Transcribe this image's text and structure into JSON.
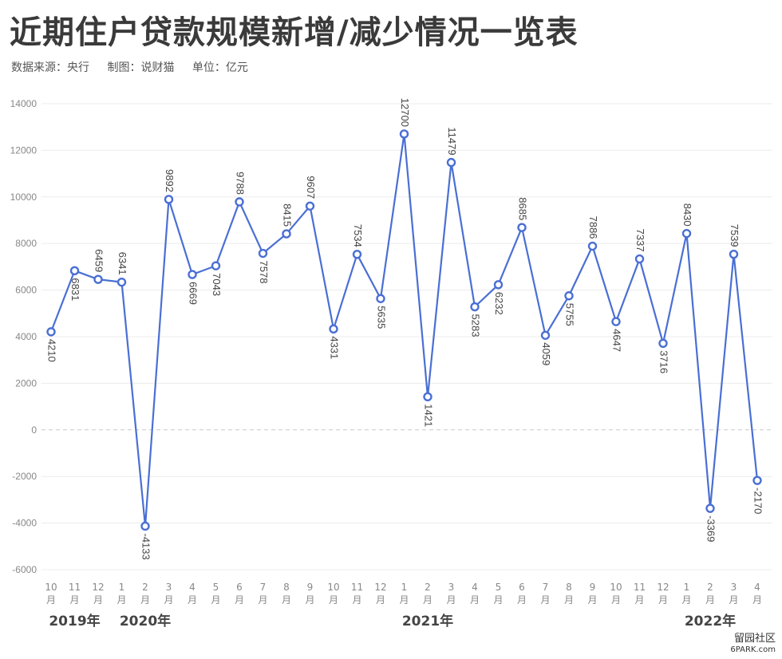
{
  "header": {
    "title": "近期住户贷款规模新增/减少情况一览表",
    "source": "数据来源：央行",
    "author": "制图：说财猫",
    "unit": "单位：亿元"
  },
  "watermark": {
    "line1": "留园社区",
    "line2": "6PARK.com"
  },
  "chart_data": {
    "type": "line",
    "title": "近期住户贷款规模新增/减少情况一览表",
    "ylim": [
      -6000,
      14000
    ],
    "yticks": [
      -6000,
      -4000,
      -2000,
      0,
      2000,
      4000,
      6000,
      8000,
      10000,
      12000,
      14000
    ],
    "grid": true,
    "line_color": "#4a6fd4",
    "categories": [
      "10月",
      "11月",
      "12月",
      "1月",
      "2月",
      "3月",
      "4月",
      "5月",
      "6月",
      "7月",
      "8月",
      "9月",
      "10月",
      "11月",
      "12月",
      "1月",
      "2月",
      "3月",
      "4月",
      "5月",
      "6月",
      "7月",
      "8月",
      "9月",
      "10月",
      "11月",
      "12月",
      "1月",
      "2月",
      "3月",
      "4月"
    ],
    "month_labels": [
      "10",
      "11",
      "12",
      "1",
      "2",
      "3",
      "4",
      "5",
      "6",
      "7",
      "8",
      "9",
      "10",
      "11",
      "12",
      "1",
      "2",
      "3",
      "4",
      "5",
      "6",
      "7",
      "8",
      "9",
      "10",
      "11",
      "12",
      "1",
      "2",
      "3",
      "4"
    ],
    "month_suffix": "月",
    "values": [
      4210,
      6831,
      6459,
      6341,
      -4133,
      9892,
      6669,
      7043,
      9788,
      7578,
      8415,
      9607,
      4331,
      7534,
      5635,
      12700,
      1421,
      11479,
      5283,
      6232,
      8685,
      4059,
      5755,
      7886,
      4647,
      7337,
      3716,
      8430,
      -3369,
      7539,
      -2170
    ],
    "label_side": [
      "below",
      "below",
      "above",
      "above",
      "below",
      "above",
      "below",
      "below",
      "above",
      "below",
      "above",
      "above",
      "below",
      "above",
      "below",
      "above",
      "below",
      "above",
      "below",
      "below",
      "above",
      "below",
      "below",
      "above",
      "below",
      "above",
      "below",
      "above",
      "below",
      "above",
      "below"
    ],
    "years": [
      {
        "label": "2019年",
        "index": 1
      },
      {
        "label": "2020年",
        "index": 4
      },
      {
        "label": "2021年",
        "index": 16
      },
      {
        "label": "2022年",
        "index": 28
      }
    ]
  }
}
